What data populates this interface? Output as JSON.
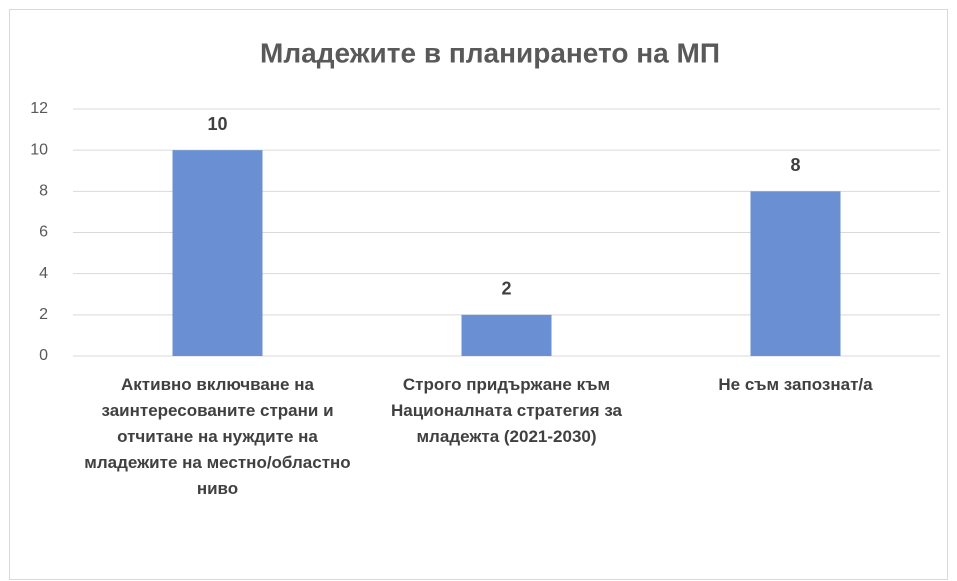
{
  "chart_data": {
    "type": "bar",
    "title": "Младежите в планирането на МП",
    "categories": [
      "Активно включване на заинтересованите страни и отчитане на нуждите на младежите на местно/областно ниво",
      "Строго придържане към Националната стратегия за младежта (2021-2030)",
      "Не съм запознат/а"
    ],
    "values": [
      10,
      2,
      8
    ],
    "color": "#6a8fd2",
    "ylim": [
      0,
      12
    ],
    "yticks": [
      0,
      2,
      4,
      6,
      8,
      10,
      12
    ],
    "grid": true,
    "data_labels": true
  }
}
